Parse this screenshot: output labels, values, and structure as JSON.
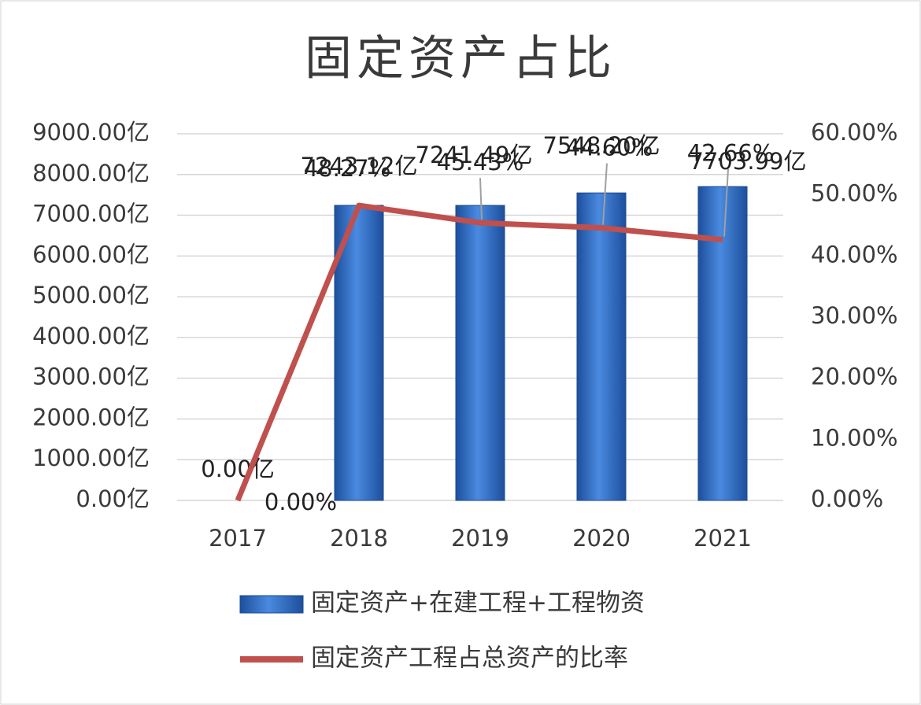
{
  "chart_data": {
    "type": "bar-line",
    "title": "固定资产占比",
    "categories": [
      "2017",
      "2018",
      "2019",
      "2020",
      "2021"
    ],
    "series": [
      {
        "name": "固定资产+在建工程+工程物资",
        "type": "bar",
        "color": "#2f6cc4",
        "values": [
          0,
          7243.12,
          7241.49,
          7548.2,
          7703.99
        ],
        "value_labels": [
          "0.00亿",
          "7243.12亿",
          "7241.49亿",
          "7548.20亿",
          "7703.99亿"
        ]
      },
      {
        "name": "固定资产工程占总资产的比率",
        "type": "line",
        "color": "#c0504d",
        "axis": "y2",
        "values": [
          0,
          48.27,
          45.43,
          44.6,
          42.66
        ],
        "value_labels": [
          "0.00%",
          "48.27%",
          "45.43%",
          "44.60%",
          "42.66%"
        ]
      }
    ],
    "ylim": [
      0,
      9000
    ],
    "yticks": [
      {
        "value": 0,
        "label": "0.00亿"
      },
      {
        "value": 1000,
        "label": "1000.00亿"
      },
      {
        "value": 2000,
        "label": "2000.00亿"
      },
      {
        "value": 3000,
        "label": "3000.00亿"
      },
      {
        "value": 4000,
        "label": "4000.00亿"
      },
      {
        "value": 5000,
        "label": "5000.00亿"
      },
      {
        "value": 6000,
        "label": "6000.00亿"
      },
      {
        "value": 7000,
        "label": "7000.00亿"
      },
      {
        "value": 8000,
        "label": "8000.00亿"
      },
      {
        "value": 9000,
        "label": "9000.00亿"
      }
    ],
    "y2lim": [
      0,
      60
    ],
    "y2ticks": [
      {
        "value": 0,
        "label": "0.00%"
      },
      {
        "value": 10,
        "label": "10.00%"
      },
      {
        "value": 20,
        "label": "20.00%"
      },
      {
        "value": 30,
        "label": "30.00%"
      },
      {
        "value": 40,
        "label": "40.00%"
      },
      {
        "value": 50,
        "label": "50.00%"
      },
      {
        "value": 60,
        "label": "60.00%"
      }
    ],
    "grid": true
  }
}
